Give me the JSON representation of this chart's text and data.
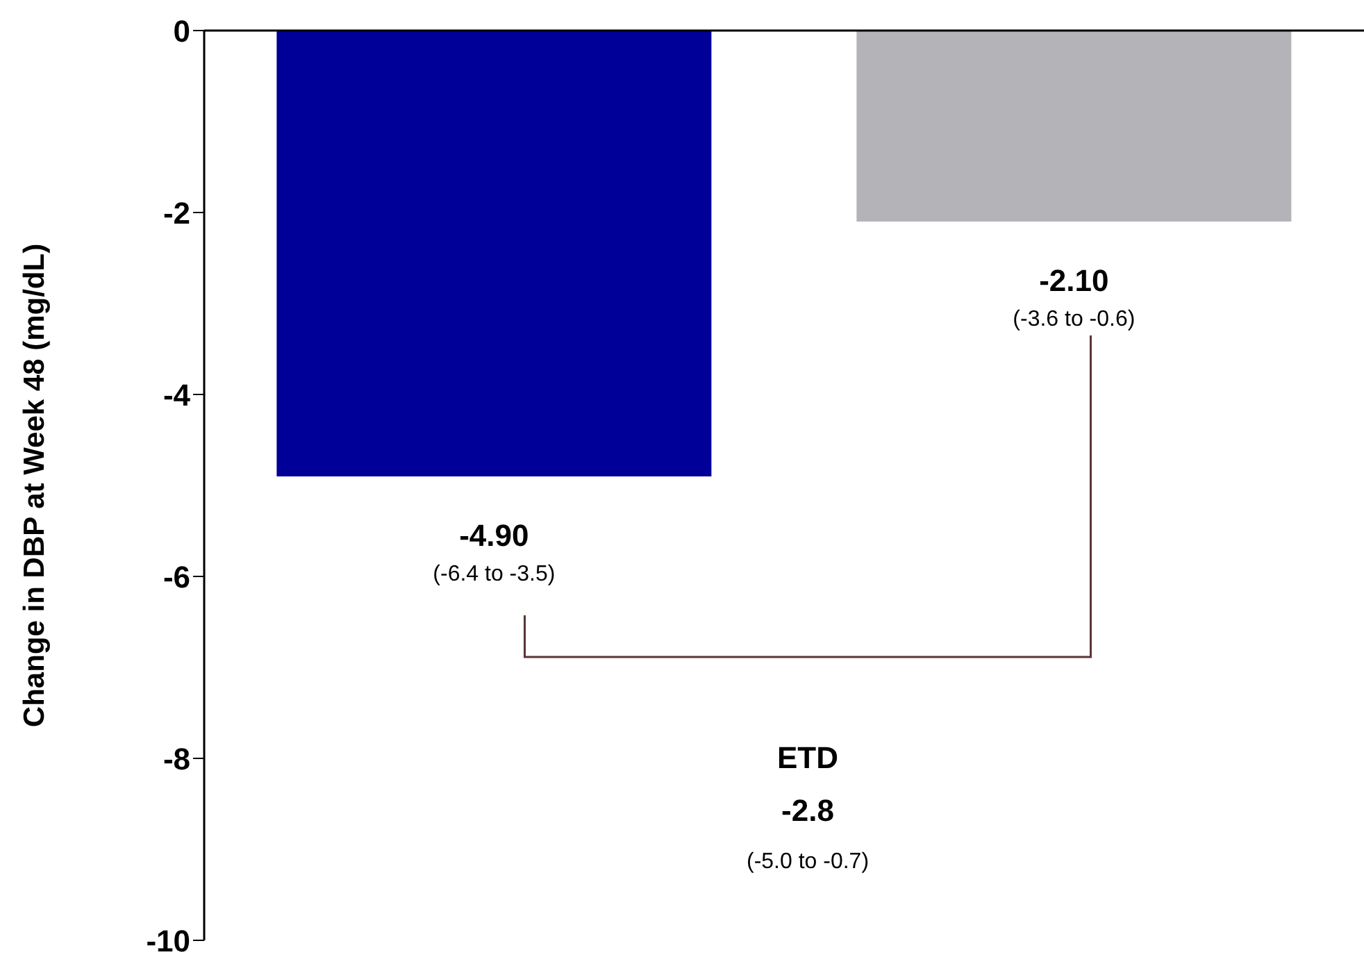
{
  "chart_data": {
    "type": "bar",
    "ylabel": "Change in DBP at Week 48 (mg/dL)",
    "categories": [
      null,
      null
    ],
    "values": [
      -4.9,
      -2.1
    ],
    "colors": [
      "#000099",
      "#b3b3b8"
    ],
    "value_labels": [
      "-4.90",
      "-2.10"
    ],
    "ylim": [
      -10,
      0
    ],
    "yticks": [
      {
        "value": -10,
        "label": "-10"
      },
      {
        "value": -8,
        "label": "-8"
      },
      {
        "value": -6,
        "label": "-6"
      },
      {
        "value": -4,
        "label": "-4"
      },
      {
        "value": -2,
        "label": "-2"
      },
      {
        "value": 0,
        "label": "0"
      }
    ],
    "annotations": [
      "(-6.4 to -3.5)",
      "(-3.6 to -0.6)",
      "ETD",
      "-2.8",
      "(-5.0 to -0.7)"
    ]
  }
}
